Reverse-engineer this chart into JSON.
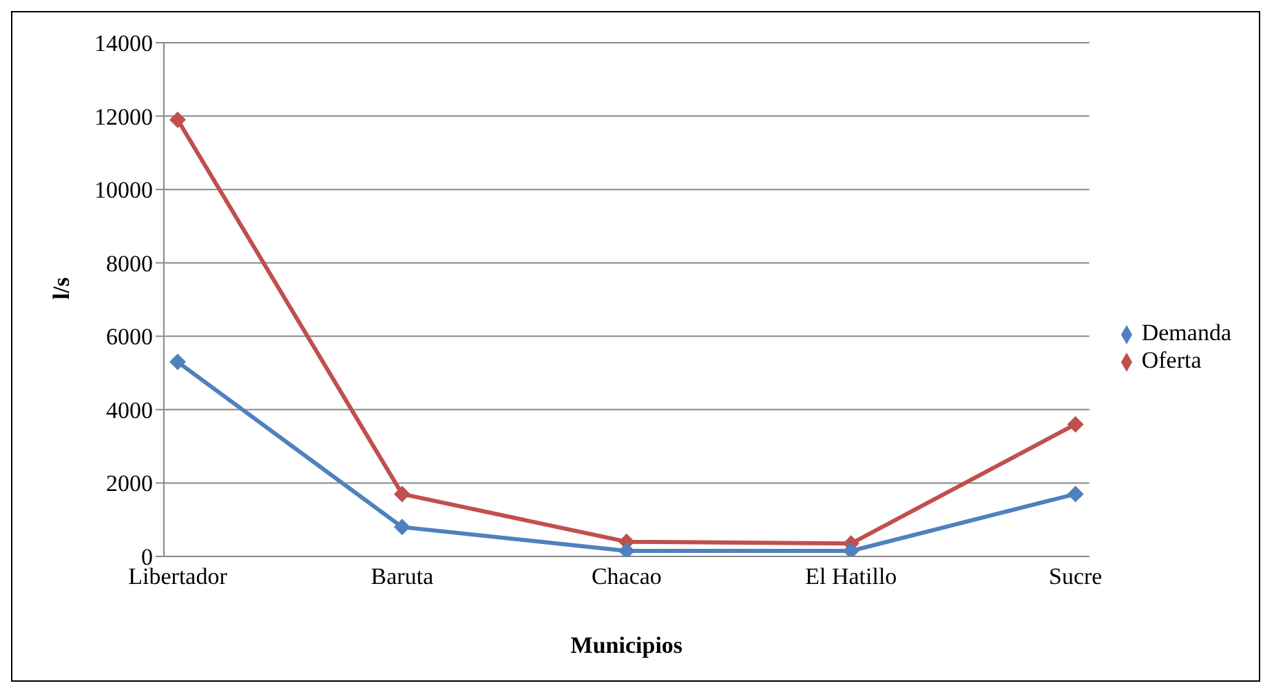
{
  "chart_data": {
    "type": "line",
    "xlabel": "Municipios",
    "ylabel": "l/s",
    "categories": [
      "Libertador",
      "Baruta",
      "Chacao",
      "El Hatillo",
      "Sucre"
    ],
    "series": [
      {
        "name": "Oferta",
        "color": "#c0504d",
        "values": [
          11900,
          1700,
          400,
          350,
          3600
        ]
      },
      {
        "name": "Demanda",
        "color": "#4f81bd",
        "values": [
          5300,
          800,
          150,
          150,
          1700
        ]
      }
    ],
    "ylim": [
      0,
      14000
    ],
    "yticks": [
      0,
      2000,
      4000,
      6000,
      8000,
      10000,
      12000,
      14000
    ],
    "grid": "y",
    "legend": "right",
    "marker": "diamond",
    "line_style": "solid"
  }
}
